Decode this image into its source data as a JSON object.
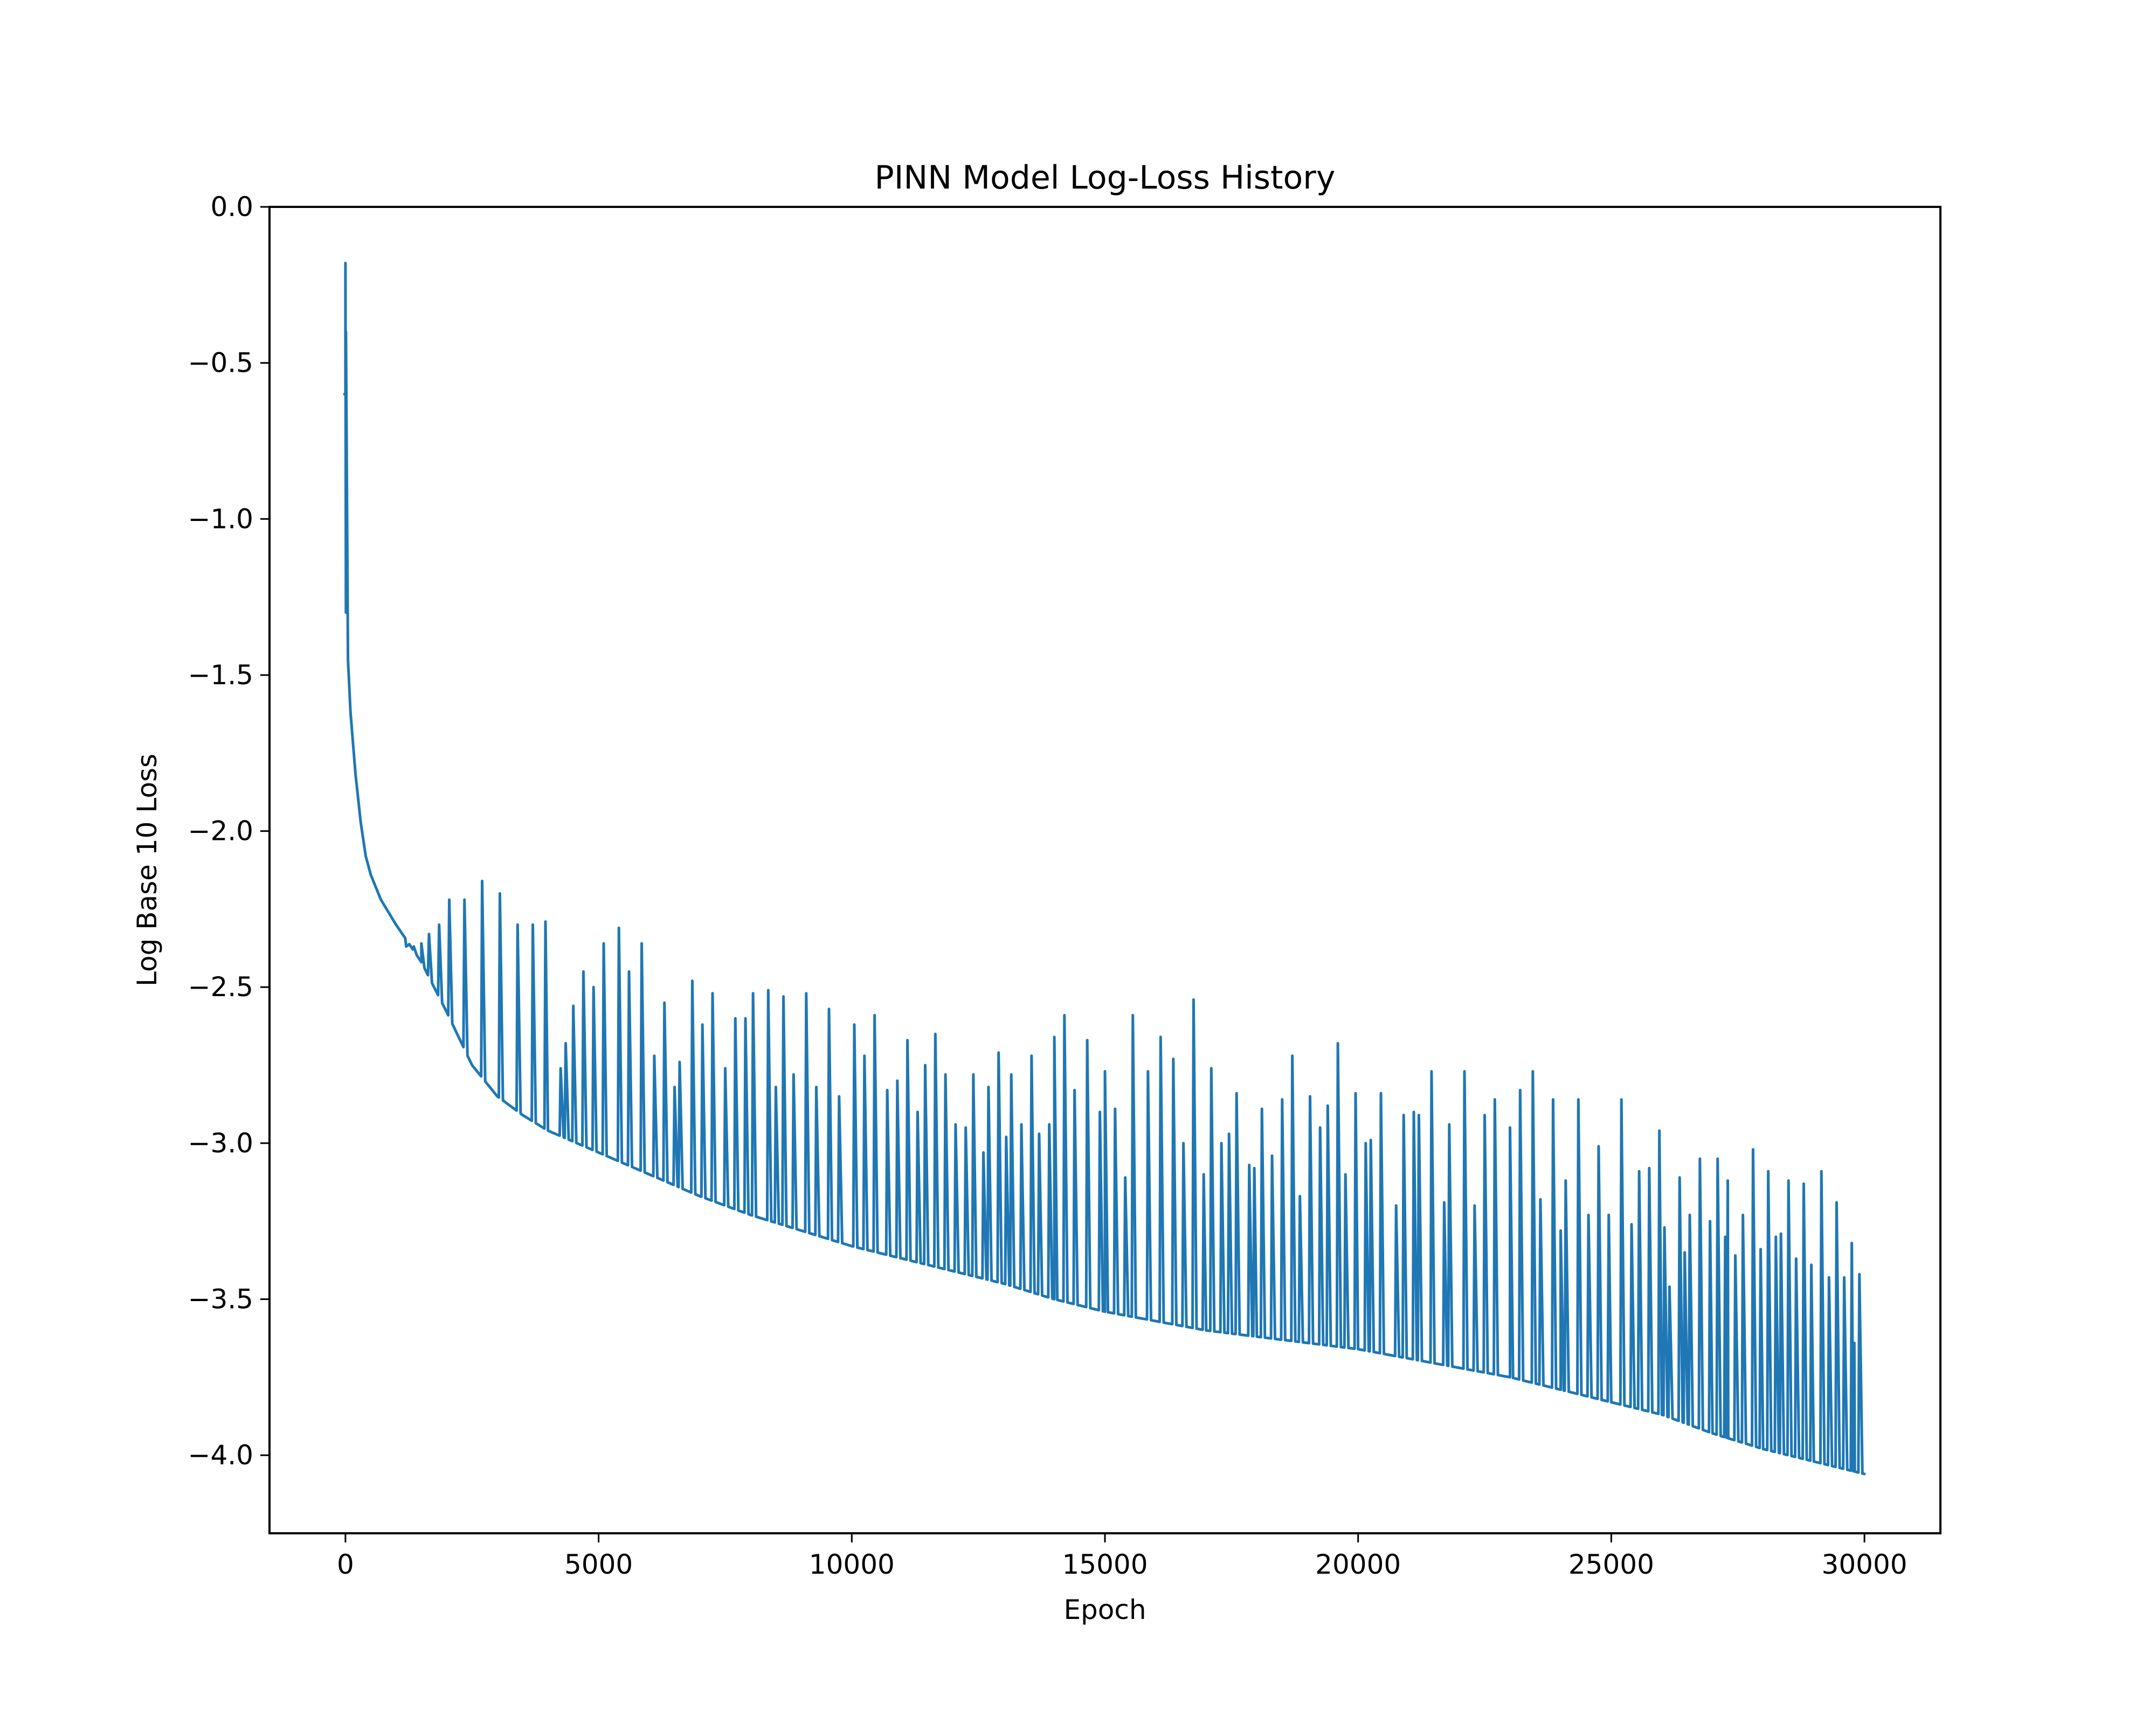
{
  "chart_data": {
    "type": "line",
    "title": "PINN Model Log-Loss History",
    "xlabel": "Epoch",
    "ylabel": "Log Base 10 Loss",
    "xlim": [
      -1500,
      31500
    ],
    "ylim": [
      -4.25,
      0.0
    ],
    "x_ticks": [
      0,
      5000,
      10000,
      15000,
      20000,
      25000,
      30000
    ],
    "x_tick_labels": [
      "0",
      "5000",
      "10000",
      "15000",
      "20000",
      "25000",
      "30000"
    ],
    "y_ticks": [
      0.0,
      -0.5,
      -1.0,
      -1.5,
      -2.0,
      -2.5,
      -3.0,
      -3.5,
      -4.0
    ],
    "y_tick_labels": [
      "0.0",
      "−0.5",
      "−1.0",
      "−1.5",
      "−2.0",
      "−2.5",
      "−3.0",
      "−3.5",
      "−4.0"
    ],
    "grid": false,
    "legend": "none",
    "series": [
      {
        "color": "#1f77b4",
        "baseline": [
          [
            0,
            -0.6
          ],
          [
            10,
            -1.3
          ],
          [
            50,
            -1.45
          ],
          [
            100,
            -1.62
          ],
          [
            200,
            -1.82
          ],
          [
            300,
            -1.97
          ],
          [
            400,
            -2.08
          ],
          [
            500,
            -2.14
          ],
          [
            700,
            -2.22
          ],
          [
            1000,
            -2.3
          ],
          [
            1500,
            -2.42
          ],
          [
            2000,
            -2.58
          ],
          [
            2500,
            -2.75
          ],
          [
            3000,
            -2.85
          ],
          [
            3500,
            -2.91
          ],
          [
            4000,
            -2.96
          ],
          [
            5000,
            -3.03
          ],
          [
            6000,
            -3.1
          ],
          [
            7000,
            -3.17
          ],
          [
            8000,
            -3.23
          ],
          [
            9000,
            -3.28
          ],
          [
            10000,
            -3.33
          ],
          [
            11000,
            -3.37
          ],
          [
            12000,
            -3.41
          ],
          [
            13000,
            -3.45
          ],
          [
            14000,
            -3.5
          ],
          [
            15000,
            -3.54
          ],
          [
            16000,
            -3.57
          ],
          [
            17000,
            -3.6
          ],
          [
            18000,
            -3.62
          ],
          [
            19000,
            -3.64
          ],
          [
            20000,
            -3.66
          ],
          [
            21000,
            -3.69
          ],
          [
            22000,
            -3.72
          ],
          [
            23000,
            -3.75
          ],
          [
            24000,
            -3.79
          ],
          [
            25000,
            -3.83
          ],
          [
            26000,
            -3.87
          ],
          [
            27000,
            -3.93
          ],
          [
            28000,
            -3.98
          ],
          [
            29000,
            -4.02
          ],
          [
            30000,
            -4.06
          ]
        ],
        "spikes": [
          [
            0,
            -0.18
          ],
          [
            10,
            -0.4
          ],
          [
            1200,
            -2.37
          ],
          [
            1350,
            -2.37
          ],
          [
            1500,
            -2.36
          ],
          [
            1650,
            -2.33
          ],
          [
            1850,
            -2.3
          ],
          [
            2050,
            -2.22
          ],
          [
            2350,
            -2.22
          ],
          [
            2700,
            -2.16
          ],
          [
            3050,
            -2.2
          ],
          [
            3400,
            -2.3
          ],
          [
            3700,
            -2.3
          ],
          [
            3950,
            -2.29
          ],
          [
            4250,
            -2.76
          ],
          [
            4350,
            -2.68
          ],
          [
            4500,
            -2.56
          ],
          [
            4700,
            -2.45
          ],
          [
            4900,
            -2.5
          ],
          [
            5100,
            -2.36
          ],
          [
            5400,
            -2.31
          ],
          [
            5600,
            -2.45
          ],
          [
            5850,
            -2.36
          ],
          [
            6100,
            -2.72
          ],
          [
            6300,
            -2.55
          ],
          [
            6500,
            -2.82
          ],
          [
            6600,
            -2.74
          ],
          [
            6850,
            -2.48
          ],
          [
            7050,
            -2.62
          ],
          [
            7250,
            -2.52
          ],
          [
            7500,
            -2.76
          ],
          [
            7700,
            -2.6
          ],
          [
            7900,
            -2.6
          ],
          [
            8050,
            -2.52
          ],
          [
            8350,
            -2.51
          ],
          [
            8500,
            -2.82
          ],
          [
            8650,
            -2.53
          ],
          [
            8850,
            -2.78
          ],
          [
            9100,
            -2.52
          ],
          [
            9300,
            -2.82
          ],
          [
            9550,
            -2.57
          ],
          [
            9750,
            -2.85
          ],
          [
            10050,
            -2.62
          ],
          [
            10250,
            -2.72
          ],
          [
            10450,
            -2.59
          ],
          [
            10700,
            -2.83
          ],
          [
            10900,
            -2.8
          ],
          [
            11100,
            -2.67
          ],
          [
            11300,
            -2.9
          ],
          [
            11450,
            -2.75
          ],
          [
            11650,
            -2.65
          ],
          [
            11850,
            -2.78
          ],
          [
            12050,
            -2.94
          ],
          [
            12250,
            -2.95
          ],
          [
            12400,
            -2.78
          ],
          [
            12600,
            -3.03
          ],
          [
            12700,
            -2.82
          ],
          [
            12900,
            -2.71
          ],
          [
            13050,
            -2.98
          ],
          [
            13150,
            -2.78
          ],
          [
            13350,
            -2.94
          ],
          [
            13550,
            -2.72
          ],
          [
            13700,
            -2.97
          ],
          [
            13900,
            -2.94
          ],
          [
            14000,
            -2.66
          ],
          [
            14200,
            -2.59
          ],
          [
            14400,
            -2.83
          ],
          [
            14650,
            -2.67
          ],
          [
            14900,
            -2.9
          ],
          [
            15000,
            -2.77
          ],
          [
            15200,
            -2.89
          ],
          [
            15400,
            -3.11
          ],
          [
            15550,
            -2.59
          ],
          [
            15850,
            -2.77
          ],
          [
            16100,
            -2.66
          ],
          [
            16350,
            -2.73
          ],
          [
            16550,
            -3.0
          ],
          [
            16750,
            -2.54
          ],
          [
            16950,
            -3.1
          ],
          [
            17100,
            -2.76
          ],
          [
            17300,
            -3.0
          ],
          [
            17450,
            -2.97
          ],
          [
            17600,
            -2.84
          ],
          [
            17850,
            -3.07
          ],
          [
            17950,
            -3.08
          ],
          [
            18100,
            -2.89
          ],
          [
            18300,
            -3.04
          ],
          [
            18500,
            -2.86
          ],
          [
            18700,
            -2.72
          ],
          [
            18850,
            -3.17
          ],
          [
            19050,
            -2.85
          ],
          [
            19250,
            -2.95
          ],
          [
            19400,
            -2.88
          ],
          [
            19600,
            -2.68
          ],
          [
            19750,
            -3.1
          ],
          [
            19950,
            -2.84
          ],
          [
            20150,
            -3.0
          ],
          [
            20250,
            -2.99
          ],
          [
            20450,
            -2.84
          ],
          [
            20750,
            -3.2
          ],
          [
            20900,
            -2.91
          ],
          [
            21100,
            -2.9
          ],
          [
            21200,
            -2.91
          ],
          [
            21450,
            -2.77
          ],
          [
            21700,
            -3.19
          ],
          [
            21800,
            -2.94
          ],
          [
            22100,
            -2.77
          ],
          [
            22300,
            -3.2
          ],
          [
            22500,
            -2.91
          ],
          [
            22700,
            -2.86
          ],
          [
            23000,
            -2.95
          ],
          [
            23200,
            -2.83
          ],
          [
            23450,
            -2.77
          ],
          [
            23600,
            -3.18
          ],
          [
            23850,
            -2.86
          ],
          [
            24000,
            -3.28
          ],
          [
            24100,
            -3.12
          ],
          [
            24350,
            -2.86
          ],
          [
            24550,
            -3.23
          ],
          [
            24750,
            -3.01
          ],
          [
            24950,
            -3.23
          ],
          [
            25200,
            -2.86
          ],
          [
            25400,
            -3.26
          ],
          [
            25550,
            -3.09
          ],
          [
            25750,
            -3.08
          ],
          [
            25950,
            -2.96
          ],
          [
            26050,
            -3.27
          ],
          [
            26150,
            -3.46
          ],
          [
            26350,
            -3.11
          ],
          [
            26450,
            -3.35
          ],
          [
            26550,
            -3.23
          ],
          [
            26750,
            -3.05
          ],
          [
            26950,
            -3.25
          ],
          [
            27100,
            -3.05
          ],
          [
            27250,
            -3.3
          ],
          [
            27300,
            -3.12
          ],
          [
            27450,
            -3.36
          ],
          [
            27600,
            -3.23
          ],
          [
            27800,
            -3.02
          ],
          [
            27950,
            -3.34
          ],
          [
            28100,
            -3.09
          ],
          [
            28250,
            -3.3
          ],
          [
            28350,
            -3.29
          ],
          [
            28500,
            -3.12
          ],
          [
            28650,
            -3.37
          ],
          [
            28800,
            -3.13
          ],
          [
            28950,
            -3.39
          ],
          [
            29150,
            -3.09
          ],
          [
            29300,
            -3.43
          ],
          [
            29450,
            -3.19
          ],
          [
            29600,
            -3.43
          ],
          [
            29750,
            -3.32
          ],
          [
            29800,
            -3.64
          ],
          [
            29900,
            -3.42
          ]
        ]
      }
    ]
  }
}
